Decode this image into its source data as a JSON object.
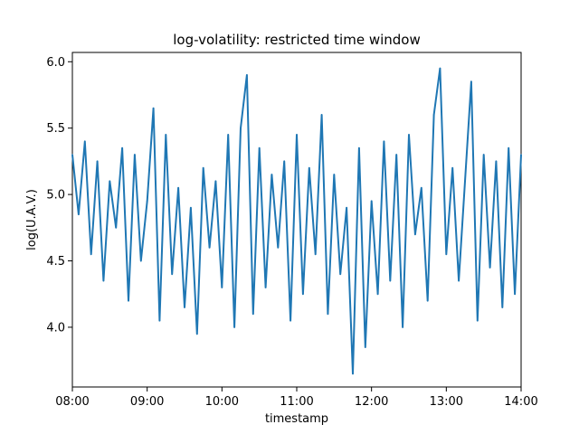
{
  "chart_data": {
    "type": "line",
    "title": "log-volatility: restricted time window",
    "xlabel": "timestamp",
    "ylabel": "log(U.A.V.)",
    "xlim": [
      "08:00",
      "14:00"
    ],
    "ylim": [
      3.55,
      6.07
    ],
    "x_ticks": [
      "08:00",
      "09:00",
      "10:00",
      "11:00",
      "12:00",
      "13:00",
      "14:00"
    ],
    "y_ticks": [
      "4.0",
      "4.5",
      "5.0",
      "5.5",
      "6.0"
    ],
    "y_tick_values": [
      4.0,
      4.5,
      5.0,
      5.5,
      6.0
    ],
    "grid": false,
    "legend": "none",
    "line_color": "#1f77b4",
    "series": [
      {
        "x": [
          "08:00",
          "08:05",
          "08:10",
          "08:15",
          "08:20",
          "08:25",
          "08:30",
          "08:35",
          "08:40",
          "08:45",
          "08:50",
          "08:55",
          "09:00",
          "09:05",
          "09:10",
          "09:15",
          "09:20",
          "09:25",
          "09:30",
          "09:35",
          "09:40",
          "09:45",
          "09:50",
          "09:55",
          "10:00",
          "10:05",
          "10:10",
          "10:15",
          "10:20",
          "10:25",
          "10:30",
          "10:35",
          "10:40",
          "10:45",
          "10:50",
          "10:55",
          "11:00",
          "11:05",
          "11:10",
          "11:15",
          "11:20",
          "11:25",
          "11:30",
          "11:35",
          "11:40",
          "11:45",
          "11:50",
          "11:55",
          "12:00",
          "12:05",
          "12:10",
          "12:15",
          "12:20",
          "12:25",
          "12:30",
          "12:35",
          "12:40",
          "12:45",
          "12:50",
          "12:55",
          "13:00",
          "13:05",
          "13:10",
          "13:15",
          "13:20",
          "13:25",
          "13:30",
          "13:35",
          "13:40",
          "13:45",
          "13:50",
          "13:55",
          "14:00"
        ],
        "values": [
          5.3,
          4.85,
          5.4,
          4.55,
          5.25,
          4.35,
          5.1,
          4.75,
          5.35,
          4.2,
          5.3,
          4.5,
          4.95,
          5.65,
          4.05,
          5.45,
          4.4,
          5.05,
          4.15,
          4.9,
          3.95,
          5.2,
          4.6,
          5.1,
          4.3,
          5.45,
          4.0,
          5.5,
          5.9,
          4.1,
          5.35,
          4.3,
          5.15,
          4.6,
          5.25,
          4.05,
          5.45,
          4.25,
          5.2,
          4.55,
          5.6,
          4.1,
          5.15,
          4.4,
          4.9,
          3.65,
          5.35,
          3.85,
          4.95,
          4.25,
          5.4,
          4.35,
          5.3,
          4.0,
          5.45,
          4.7,
          5.05,
          4.2,
          5.6,
          5.95,
          4.55,
          5.2,
          4.35,
          5.1,
          5.85,
          4.05,
          5.3,
          4.45,
          5.25,
          4.15,
          5.35,
          4.25,
          5.3
        ]
      }
    ]
  }
}
